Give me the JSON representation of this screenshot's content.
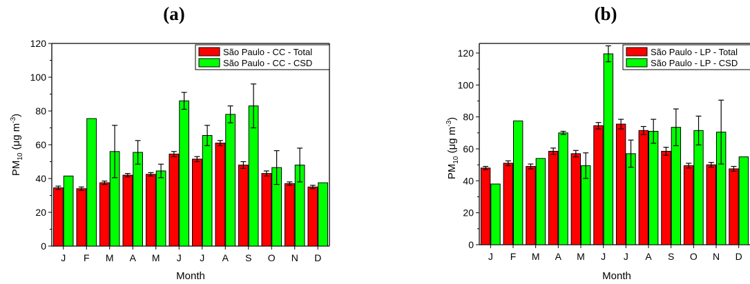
{
  "chart_data": [
    {
      "type": "bar",
      "panel_label": "(a)",
      "xlabel": "Month",
      "ylabel_main": "PM",
      "ylabel_sub": "10",
      "ylabel_rest": " (μg m",
      "ylabel_sup": "-3",
      "ylabel_close": ")",
      "ylim": [
        0,
        120
      ],
      "yticks": [
        0,
        20,
        40,
        60,
        80,
        100,
        120
      ],
      "categories": [
        "J",
        "F",
        "M",
        "A",
        "M",
        "J",
        "J",
        "A",
        "S",
        "O",
        "N",
        "D"
      ],
      "legend_position": "top-right",
      "series": [
        {
          "name": "São Paulo - CC - Total",
          "color": "#ff0000",
          "values": [
            34.5,
            34.0,
            37.5,
            42.0,
            42.5,
            54.5,
            51.5,
            61.0,
            48.0,
            43.0,
            37.0,
            35.0
          ],
          "errors": [
            1.0,
            1.0,
            1.0,
            1.0,
            1.0,
            1.5,
            1.5,
            1.5,
            2.0,
            1.5,
            1.0,
            1.0
          ]
        },
        {
          "name": "São Paulo - CC - CSD",
          "color": "#00ff00",
          "values": [
            41.5,
            75.5,
            56.0,
            55.5,
            44.5,
            86.0,
            65.5,
            78.0,
            83.0,
            46.5,
            48.0,
            37.5
          ],
          "errors": [
            0,
            0,
            15.5,
            7.0,
            4.0,
            5.0,
            6.0,
            5.0,
            13.0,
            10.0,
            10.0,
            0
          ]
        }
      ]
    },
    {
      "type": "bar",
      "panel_label": "(b)",
      "xlabel": "Month",
      "ylabel_main": "PM",
      "ylabel_sub": "10",
      "ylabel_rest": " (μg m",
      "ylabel_sup": "-3",
      "ylabel_close": ")",
      "ylim": [
        0,
        126
      ],
      "yticks": [
        0,
        20,
        40,
        60,
        80,
        100,
        120
      ],
      "categories": [
        "J",
        "F",
        "M",
        "A",
        "M",
        "J",
        "J",
        "A",
        "S",
        "O",
        "N",
        "D"
      ],
      "legend_position": "top-right",
      "series": [
        {
          "name": "São Paulo - LP - Total",
          "color": "#ff0000",
          "values": [
            48.0,
            51.0,
            49.0,
            58.5,
            57.0,
            74.5,
            75.5,
            71.5,
            58.5,
            49.5,
            50.0,
            47.5
          ],
          "errors": [
            1.0,
            1.5,
            1.5,
            2.0,
            2.0,
            2.0,
            3.0,
            2.5,
            2.5,
            1.5,
            1.5,
            1.5
          ]
        },
        {
          "name": "São Paulo - LP - CSD",
          "color": "#00ff00",
          "values": [
            38.0,
            77.5,
            54.0,
            70.0,
            49.5,
            119.5,
            57.0,
            71.0,
            73.5,
            71.5,
            70.5,
            55.0
          ],
          "errors": [
            0,
            0,
            0,
            1.0,
            8.0,
            5.0,
            8.5,
            7.5,
            11.5,
            9.0,
            20.0,
            0
          ]
        }
      ]
    }
  ]
}
